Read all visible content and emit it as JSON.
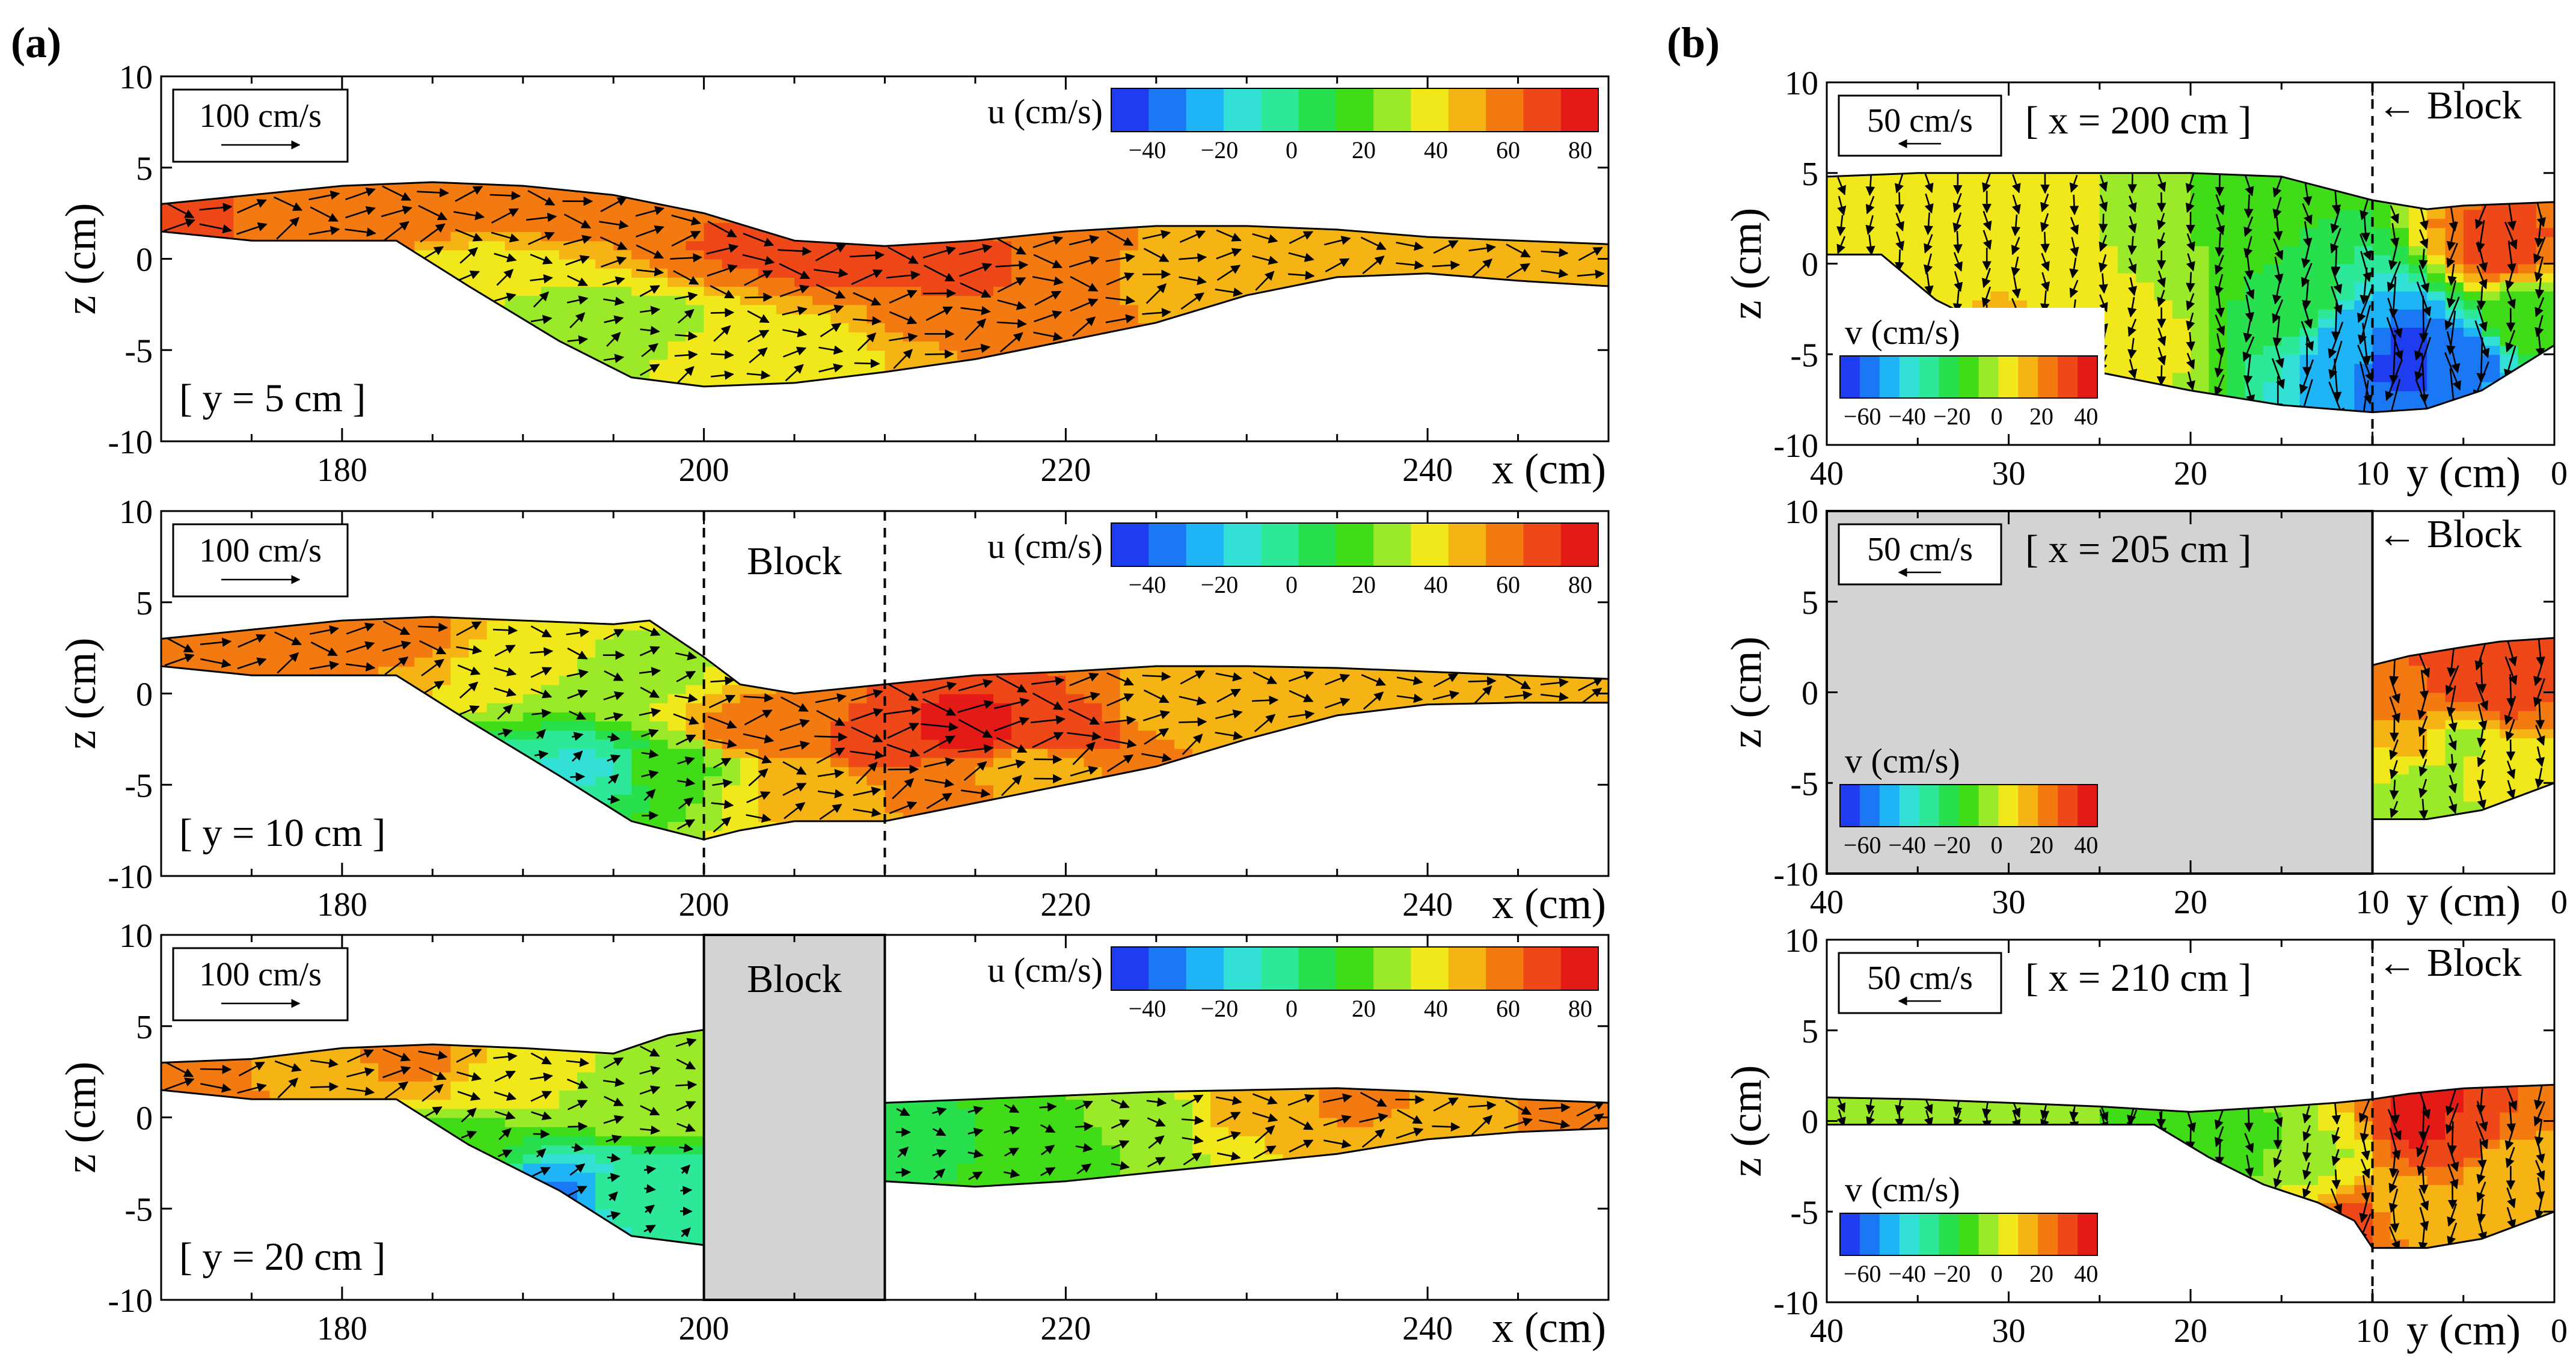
{
  "chart_data": [
    {
      "type": "heatmap",
      "panel": "(a)",
      "section": "[ y = 5 cm ]",
      "xlabel": "x (cm)",
      "ylabel": "z (cm)",
      "xlim": [
        170,
        250
      ],
      "ylim": [
        -10,
        10
      ],
      "xticks": [
        180,
        200,
        220,
        240
      ],
      "yticks": [
        -10,
        -5,
        0,
        5,
        10
      ],
      "colorbar": {
        "label": "u (cm/s)",
        "ticks": [
          -40,
          -20,
          0,
          20,
          40,
          60,
          80
        ],
        "range": [
          -50,
          85
        ]
      },
      "reference_vector": "100 cm/s",
      "block": null,
      "surface_z": [
        [
          170,
          3.0
        ],
        [
          175,
          3.5
        ],
        [
          180,
          4.0
        ],
        [
          185,
          4.2
        ],
        [
          190,
          4.0
        ],
        [
          195,
          3.5
        ],
        [
          200,
          2.5
        ],
        [
          205,
          1.0
        ],
        [
          210,
          0.7
        ],
        [
          215,
          1.0
        ],
        [
          220,
          1.5
        ],
        [
          225,
          1.8
        ],
        [
          230,
          1.8
        ],
        [
          235,
          1.6
        ],
        [
          240,
          1.2
        ],
        [
          245,
          1.0
        ],
        [
          250,
          0.8
        ]
      ],
      "bed_z": [
        [
          170,
          1.5
        ],
        [
          175,
          1.0
        ],
        [
          183,
          1.0
        ],
        [
          187,
          -1.5
        ],
        [
          192,
          -4.5
        ],
        [
          196,
          -6.5
        ],
        [
          200,
          -7.0
        ],
        [
          205,
          -6.8
        ],
        [
          210,
          -6.2
        ],
        [
          215,
          -5.5
        ],
        [
          220,
          -4.5
        ],
        [
          225,
          -3.5
        ],
        [
          230,
          -2.0
        ],
        [
          235,
          -1.0
        ],
        [
          240,
          -0.8
        ],
        [
          245,
          -1.2
        ],
        [
          250,
          -1.5
        ]
      ],
      "u_cells": [
        [
          172,
          2,
          65
        ],
        [
          178,
          2,
          60
        ],
        [
          184,
          3,
          62
        ],
        [
          190,
          3,
          58
        ],
        [
          196,
          2.5,
          55
        ],
        [
          202,
          1,
          65
        ],
        [
          208,
          0,
          70
        ],
        [
          214,
          -1,
          70
        ],
        [
          220,
          -1,
          60
        ],
        [
          226,
          -1,
          50
        ],
        [
          232,
          0,
          45
        ],
        [
          238,
          0,
          50
        ],
        [
          244,
          0,
          48
        ],
        [
          188,
          -1,
          35
        ],
        [
          192,
          -3,
          30
        ],
        [
          196,
          -4,
          25
        ],
        [
          200,
          -5,
          35
        ],
        [
          206,
          -4.5,
          40
        ],
        [
          212,
          -3,
          55
        ],
        [
          218,
          -2.5,
          55
        ]
      ]
    },
    {
      "type": "heatmap",
      "panel": "(a)",
      "section": "[ y = 10 cm ]",
      "xlabel": "x (cm)",
      "ylabel": "z (cm)",
      "xlim": [
        170,
        250
      ],
      "ylim": [
        -10,
        10
      ],
      "xticks": [
        180,
        200,
        220,
        240
      ],
      "yticks": [
        -10,
        -5,
        0,
        5,
        10
      ],
      "colorbar": {
        "label": "u (cm/s)",
        "ticks": [
          -40,
          -20,
          0,
          20,
          40,
          60,
          80
        ],
        "range": [
          -50,
          85
        ]
      },
      "reference_vector": "100 cm/s",
      "block": {
        "label": "Block",
        "x": [
          200,
          210
        ],
        "style": "dashed"
      },
      "surface_z": [
        [
          170,
          3.0
        ],
        [
          175,
          3.5
        ],
        [
          180,
          4.0
        ],
        [
          185,
          4.2
        ],
        [
          190,
          4.0
        ],
        [
          195,
          3.8
        ],
        [
          197,
          4.0
        ],
        [
          200,
          2.0
        ],
        [
          202,
          0.5
        ],
        [
          205,
          0.0
        ],
        [
          210,
          0.5
        ],
        [
          215,
          1.0
        ],
        [
          220,
          1.2
        ],
        [
          225,
          1.5
        ],
        [
          230,
          1.5
        ],
        [
          235,
          1.4
        ],
        [
          240,
          1.2
        ],
        [
          245,
          1.0
        ],
        [
          250,
          0.8
        ]
      ],
      "bed_z": [
        [
          170,
          1.5
        ],
        [
          175,
          1.0
        ],
        [
          183,
          1.0
        ],
        [
          187,
          -1.5
        ],
        [
          192,
          -4.5
        ],
        [
          196,
          -7.0
        ],
        [
          200,
          -8.0
        ],
        [
          202,
          -7.5
        ],
        [
          205,
          -7.0
        ],
        [
          210,
          -7.0
        ],
        [
          215,
          -6.0
        ],
        [
          220,
          -5.0
        ],
        [
          225,
          -4.0
        ],
        [
          230,
          -2.5
        ],
        [
          235,
          -1.2
        ],
        [
          240,
          -0.6
        ],
        [
          245,
          -0.5
        ],
        [
          250,
          -0.5
        ]
      ],
      "u_cells": [
        [
          172,
          2,
          60
        ],
        [
          178,
          2,
          55
        ],
        [
          184,
          3,
          55
        ],
        [
          190,
          2,
          35
        ],
        [
          196,
          1,
          30
        ],
        [
          194,
          -4,
          -10
        ],
        [
          198,
          -4,
          20
        ],
        [
          203,
          -2,
          60
        ],
        [
          210,
          -3,
          70
        ],
        [
          215,
          -2,
          80
        ],
        [
          220,
          -2,
          70
        ],
        [
          226,
          -1,
          50
        ],
        [
          232,
          0,
          45
        ],
        [
          238,
          0,
          45
        ],
        [
          244,
          0,
          50
        ],
        [
          206,
          -5,
          45
        ],
        [
          212,
          -5,
          55
        ],
        [
          218,
          -4,
          50
        ]
      ]
    },
    {
      "type": "heatmap",
      "panel": "(a)",
      "section": "[ y = 20 cm ]",
      "xlabel": "x (cm)",
      "ylabel": "z (cm)",
      "xlim": [
        170,
        250
      ],
      "ylim": [
        -10,
        10
      ],
      "xticks": [
        180,
        200,
        220,
        240
      ],
      "yticks": [
        -10,
        -5,
        0,
        5,
        10
      ],
      "colorbar": {
        "label": "u (cm/s)",
        "ticks": [
          -40,
          -20,
          0,
          20,
          40,
          60,
          80
        ],
        "range": [
          -50,
          85
        ]
      },
      "reference_vector": "100 cm/s",
      "block": {
        "label": "Block",
        "x": [
          200,
          210
        ],
        "style": "solid"
      },
      "surface_z": [
        [
          170,
          3.0
        ],
        [
          175,
          3.2
        ],
        [
          180,
          3.8
        ],
        [
          185,
          4.0
        ],
        [
          190,
          3.8
        ],
        [
          195,
          3.5
        ],
        [
          198,
          4.5
        ],
        [
          200,
          4.8
        ],
        [
          210,
          0.8
        ],
        [
          215,
          1.0
        ],
        [
          220,
          1.2
        ],
        [
          225,
          1.4
        ],
        [
          230,
          1.5
        ],
        [
          235,
          1.6
        ],
        [
          240,
          1.4
        ],
        [
          245,
          1.0
        ],
        [
          250,
          0.8
        ]
      ],
      "bed_z": [
        [
          170,
          1.5
        ],
        [
          175,
          1.0
        ],
        [
          183,
          1.0
        ],
        [
          187,
          -1.5
        ],
        [
          192,
          -4.0
        ],
        [
          196,
          -6.5
        ],
        [
          200,
          -7.0
        ],
        [
          210,
          -3.5
        ],
        [
          215,
          -3.8
        ],
        [
          220,
          -3.5
        ],
        [
          225,
          -3.0
        ],
        [
          230,
          -2.5
        ],
        [
          235,
          -2.0
        ],
        [
          240,
          -1.2
        ],
        [
          245,
          -0.8
        ],
        [
          250,
          -0.6
        ]
      ],
      "u_cells": [
        [
          172,
          2,
          60
        ],
        [
          178,
          2.5,
          50
        ],
        [
          184,
          3,
          55
        ],
        [
          190,
          2,
          35
        ],
        [
          196,
          1,
          30
        ],
        [
          186,
          -2,
          15
        ],
        [
          192,
          -4,
          -30
        ],
        [
          196,
          -4,
          0
        ],
        [
          212,
          -1,
          10
        ],
        [
          218,
          -1,
          15
        ],
        [
          224,
          0,
          25
        ],
        [
          230,
          0.5,
          45
        ],
        [
          236,
          1,
          55
        ],
        [
          242,
          0.5,
          50
        ],
        [
          248,
          0.5,
          60
        ]
      ]
    },
    {
      "type": "heatmap",
      "panel": "(b)",
      "section": "[ x = 200 cm ]",
      "xlabel": "y (cm)",
      "ylabel": "z (cm)",
      "xlim": [
        40,
        0
      ],
      "ylim": [
        -10,
        10
      ],
      "xticks": [
        40,
        30,
        20,
        10,
        0
      ],
      "yticks": [
        -10,
        -5,
        0,
        5,
        10
      ],
      "colorbar": {
        "label": "v (cm/s)",
        "ticks": [
          -60,
          -40,
          -20,
          0,
          20,
          40
        ],
        "range": [
          -70,
          45
        ]
      },
      "reference_vector": "50 cm/s",
      "block": {
        "label": "Block",
        "y": 10,
        "style": "dashed"
      },
      "surface_z": [
        [
          40,
          4.8
        ],
        [
          35,
          5.0
        ],
        [
          30,
          5.0
        ],
        [
          25,
          5.0
        ],
        [
          20,
          5.0
        ],
        [
          15,
          4.8
        ],
        [
          10,
          3.5
        ],
        [
          7,
          3.0
        ],
        [
          5,
          3.2
        ],
        [
          0,
          3.4
        ]
      ],
      "bed_z": [
        [
          40,
          0.5
        ],
        [
          37,
          0.5
        ],
        [
          34,
          -2.0
        ],
        [
          30,
          -4.0
        ],
        [
          25,
          -6.0
        ],
        [
          20,
          -7.0
        ],
        [
          15,
          -7.8
        ],
        [
          10,
          -8.2
        ],
        [
          7,
          -8.0
        ],
        [
          4,
          -7.0
        ],
        [
          0,
          -4.5
        ]
      ],
      "v_cells": [
        [
          38,
          2,
          5
        ],
        [
          33,
          1,
          8
        ],
        [
          28,
          0,
          5
        ],
        [
          22,
          1,
          0
        ],
        [
          18,
          2,
          -10
        ],
        [
          14,
          -2,
          -20
        ],
        [
          11,
          -4,
          -50
        ],
        [
          8,
          -5,
          -65
        ],
        [
          5,
          -5,
          -55
        ],
        [
          3,
          1,
          30
        ],
        [
          2,
          -3,
          -10
        ],
        [
          30,
          -3,
          10
        ],
        [
          24,
          -4,
          5
        ]
      ]
    },
    {
      "type": "heatmap",
      "panel": "(b)",
      "section": "[ x = 205 cm ]",
      "xlabel": "y (cm)",
      "ylabel": "z (cm)",
      "xlim": [
        40,
        0
      ],
      "ylim": [
        -10,
        10
      ],
      "xticks": [
        40,
        30,
        20,
        10,
        0
      ],
      "yticks": [
        -10,
        -5,
        0,
        5,
        10
      ],
      "colorbar": {
        "label": "v (cm/s)",
        "ticks": [
          -60,
          -40,
          -20,
          0,
          20,
          40
        ],
        "range": [
          -70,
          45
        ]
      },
      "reference_vector": "50 cm/s",
      "block": {
        "label": "Block",
        "y": [
          40,
          10
        ],
        "style": "solid"
      },
      "surface_z": [
        [
          10,
          1.5
        ],
        [
          8,
          2.0
        ],
        [
          5,
          2.5
        ],
        [
          3,
          2.8
        ],
        [
          0,
          3.0
        ]
      ],
      "bed_z": [
        [
          10,
          -7.0
        ],
        [
          7,
          -7.0
        ],
        [
          4,
          -6.5
        ],
        [
          0,
          -5.0
        ]
      ],
      "v_cells": [
        [
          8,
          0,
          25
        ],
        [
          5,
          1,
          35
        ],
        [
          3,
          0,
          30
        ],
        [
          8,
          -3,
          10
        ],
        [
          5,
          -3,
          0
        ],
        [
          3,
          -4,
          5
        ],
        [
          7,
          -5,
          -5
        ]
      ]
    },
    {
      "type": "heatmap",
      "panel": "(b)",
      "section": "[ x = 210 cm ]",
      "xlabel": "y (cm)",
      "ylabel": "z (cm)",
      "xlim": [
        40,
        0
      ],
      "ylim": [
        -10,
        10
      ],
      "xticks": [
        40,
        30,
        20,
        10,
        0
      ],
      "yticks": [
        -10,
        -5,
        0,
        5,
        10
      ],
      "colorbar": {
        "label": "v (cm/s)",
        "ticks": [
          -60,
          -40,
          -20,
          0,
          20,
          40
        ],
        "range": [
          -70,
          45
        ]
      },
      "reference_vector": "50 cm/s",
      "block": {
        "label": "Block",
        "y": 10,
        "style": "dashed"
      },
      "surface_z": [
        [
          40,
          1.3
        ],
        [
          35,
          1.2
        ],
        [
          30,
          1.0
        ],
        [
          25,
          0.8
        ],
        [
          20,
          0.5
        ],
        [
          15,
          0.8
        ],
        [
          12,
          1.0
        ],
        [
          10,
          1.2
        ],
        [
          8,
          1.5
        ],
        [
          5,
          1.8
        ],
        [
          0,
          2.0
        ]
      ],
      "bed_z": [
        [
          40,
          -0.2
        ],
        [
          35,
          -0.2
        ],
        [
          30,
          -0.2
        ],
        [
          25,
          -0.2
        ],
        [
          22,
          -0.2
        ],
        [
          19,
          -2.0
        ],
        [
          16,
          -3.5
        ],
        [
          13,
          -4.5
        ],
        [
          11,
          -5.5
        ],
        [
          10,
          -7.0
        ],
        [
          7,
          -7.0
        ],
        [
          4,
          -6.5
        ],
        [
          0,
          -5.0
        ]
      ],
      "v_cells": [
        [
          36,
          0.5,
          0
        ],
        [
          28,
          0.5,
          -5
        ],
        [
          22,
          0.2,
          -15
        ],
        [
          17,
          -1,
          -10
        ],
        [
          13,
          -2,
          0
        ],
        [
          7,
          0,
          40
        ],
        [
          5,
          -1,
          30
        ],
        [
          3,
          -3,
          10
        ],
        [
          8,
          -5,
          15
        ],
        [
          11,
          -6,
          30
        ]
      ]
    }
  ],
  "panel_labels": {
    "a": "(a)",
    "b": "(b)"
  },
  "block_label": "Block",
  "block_arrow_label": "← Block",
  "colors": {
    "block_fill": "#d3d3d3",
    "axis": "#000000",
    "vector": "#000000"
  }
}
